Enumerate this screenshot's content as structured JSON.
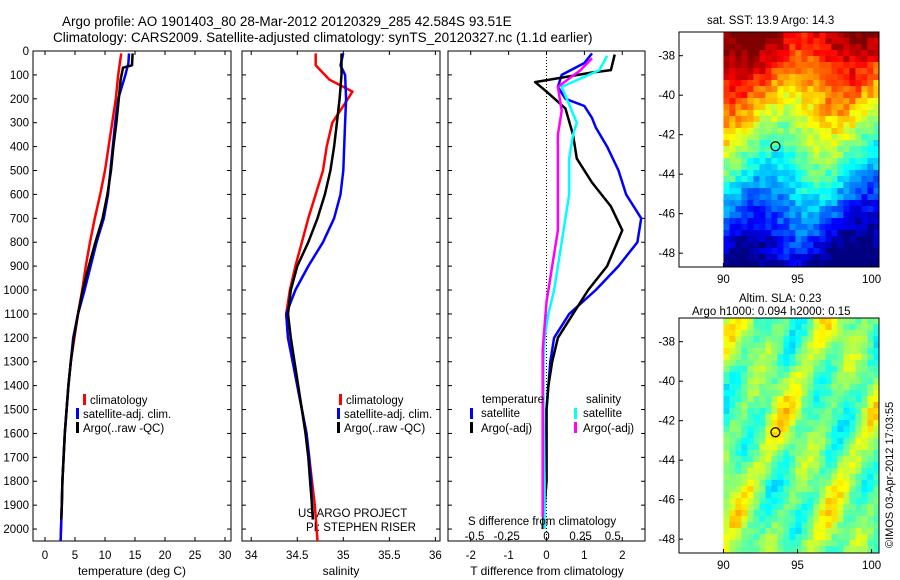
{
  "header": {
    "line1": "Argo profile: AO 1901403_80 28-Mar-2012 20120329_285 42.584S 93.51E",
    "line2": "Climatology: CARS2009. Satellite-adjusted climatology: synTS_20120327.nc (1.1d earlier)"
  },
  "side_stamp": "©IMOS 03-Apr-2012 17:03:55",
  "credits": [
    "US ARGO PROJECT",
    "PI: STEPHEN RISER"
  ],
  "legend_profiles": [
    "climatology",
    "satellite-adj. clim.",
    "Argo(..raw -QC)"
  ],
  "legend_diff": {
    "temp_head": "temperature",
    "sal_head": "salinity",
    "satellite": "satellite",
    "argo": "Argo(-adj)"
  },
  "map_titles": {
    "sst": "sat. SST: 13.9 Argo: 14.3",
    "sla1": "Altim. SLA: 0.23",
    "sla2": "Argo h1000: 0.094 h2000: 0.15"
  },
  "colors": {
    "climatology": "#ff0000",
    "satellite": "#0000ff",
    "argo": "#000000",
    "sal_sat": "#00ffff",
    "sal_argo": "#ff00ff"
  },
  "chart_data": [
    {
      "type": "line",
      "xlabel": "temperature (deg C)",
      "ylabel": "",
      "xlim": [
        -2,
        31
      ],
      "ylim": [
        2050,
        0
      ],
      "xticks": [
        0,
        5,
        10,
        15,
        20,
        25,
        30
      ],
      "yticks": [
        0,
        100,
        200,
        300,
        400,
        500,
        600,
        700,
        800,
        900,
        1000,
        1100,
        1200,
        1300,
        1400,
        1500,
        1600,
        1700,
        1800,
        1900,
        2000
      ],
      "series": [
        {
          "name": "climatology",
          "color": "#ff0000",
          "points": [
            [
              12.7,
              10
            ],
            [
              12.2,
              100
            ],
            [
              11.8,
              200
            ],
            [
              11.2,
              300
            ],
            [
              10.6,
              400
            ],
            [
              10.0,
              500
            ],
            [
              9.2,
              600
            ],
            [
              8.3,
              700
            ],
            [
              7.5,
              800
            ],
            [
              6.8,
              900
            ],
            [
              6.2,
              1000
            ],
            [
              5.5,
              1100
            ],
            [
              4.9,
              1200
            ],
            [
              4.3,
              1300
            ],
            [
              3.9,
              1400
            ],
            [
              3.6,
              1500
            ],
            [
              3.3,
              1600
            ],
            [
              3.1,
              1700
            ],
            [
              2.9,
              1800
            ],
            [
              2.8,
              1900
            ],
            [
              2.6,
              2050
            ]
          ]
        },
        {
          "name": "satellite-adj. clim.",
          "color": "#0000ff",
          "points": [
            [
              14.0,
              10
            ],
            [
              13.9,
              50
            ],
            [
              13.4,
              100
            ],
            [
              12.2,
              200
            ],
            [
              11.7,
              300
            ],
            [
              11.3,
              400
            ],
            [
              10.9,
              500
            ],
            [
              10.5,
              600
            ],
            [
              9.8,
              700
            ],
            [
              8.6,
              800
            ],
            [
              7.6,
              900
            ],
            [
              6.6,
              1000
            ],
            [
              5.5,
              1100
            ],
            [
              4.7,
              1200
            ],
            [
              4.3,
              1300
            ],
            [
              3.9,
              1400
            ],
            [
              3.6,
              1500
            ],
            [
              3.3,
              1600
            ],
            [
              3.1,
              1700
            ],
            [
              2.9,
              1800
            ],
            [
              2.8,
              1900
            ],
            [
              2.6,
              2050
            ]
          ]
        },
        {
          "name": "Argo(..raw -QC)",
          "color": "#000000",
          "points": [
            [
              14.6,
              10
            ],
            [
              14.5,
              60
            ],
            [
              13.0,
              70
            ],
            [
              12.6,
              120
            ],
            [
              12.3,
              200
            ],
            [
              11.9,
              300
            ],
            [
              11.4,
              400
            ],
            [
              11.0,
              500
            ],
            [
              10.4,
              600
            ],
            [
              9.6,
              700
            ],
            [
              8.4,
              800
            ],
            [
              7.3,
              900
            ],
            [
              6.3,
              1000
            ],
            [
              5.5,
              1100
            ],
            [
              4.8,
              1200
            ],
            [
              4.3,
              1300
            ],
            [
              3.9,
              1400
            ],
            [
              3.6,
              1500
            ],
            [
              3.3,
              1600
            ],
            [
              3.1,
              1700
            ],
            [
              2.9,
              1800
            ],
            [
              2.8,
              1900
            ],
            [
              2.7,
              1960
            ]
          ]
        }
      ]
    },
    {
      "type": "line",
      "xlabel": "salinity",
      "ylabel": "",
      "xlim": [
        33.9,
        36.05
      ],
      "ylim": [
        2050,
        0
      ],
      "xticks": [
        34,
        34.5,
        35,
        35.5,
        36
      ],
      "xticklabels": [
        "34",
        "34.5",
        "35",
        "35.5",
        "36"
      ],
      "series": [
        {
          "name": "climatology",
          "color": "#ff0000",
          "points": [
            [
              34.7,
              10
            ],
            [
              34.7,
              60
            ],
            [
              34.85,
              120
            ],
            [
              35.1,
              170
            ],
            [
              35.0,
              230
            ],
            [
              34.88,
              300
            ],
            [
              34.82,
              400
            ],
            [
              34.78,
              500
            ],
            [
              34.7,
              600
            ],
            [
              34.62,
              700
            ],
            [
              34.55,
              800
            ],
            [
              34.48,
              900
            ],
            [
              34.42,
              1000
            ],
            [
              34.38,
              1100
            ],
            [
              34.4,
              1200
            ],
            [
              34.45,
              1300
            ],
            [
              34.5,
              1400
            ],
            [
              34.55,
              1500
            ],
            [
              34.6,
              1600
            ],
            [
              34.63,
              1700
            ],
            [
              34.66,
              1800
            ],
            [
              34.69,
              1900
            ],
            [
              34.72,
              2050
            ]
          ]
        },
        {
          "name": "satellite-adj. clim.",
          "color": "#0000ff",
          "points": [
            [
              35.0,
              10
            ],
            [
              34.97,
              60
            ],
            [
              35.02,
              100
            ],
            [
              35.03,
              200
            ],
            [
              35.02,
              300
            ],
            [
              35.01,
              400
            ],
            [
              35.0,
              500
            ],
            [
              34.97,
              600
            ],
            [
              34.9,
              700
            ],
            [
              34.78,
              800
            ],
            [
              34.62,
              900
            ],
            [
              34.48,
              1000
            ],
            [
              34.38,
              1100
            ],
            [
              34.4,
              1200
            ],
            [
              34.45,
              1300
            ],
            [
              34.5,
              1400
            ],
            [
              34.55,
              1500
            ],
            [
              34.6,
              1600
            ],
            [
              34.63,
              1700
            ],
            [
              34.65,
              1800
            ],
            [
              34.66,
              1900
            ],
            [
              34.67,
              1960
            ]
          ]
        },
        {
          "name": "Argo(..raw -QC)",
          "color": "#000000",
          "points": [
            [
              34.98,
              10
            ],
            [
              34.98,
              100
            ],
            [
              34.96,
              200
            ],
            [
              34.93,
              300
            ],
            [
              34.9,
              400
            ],
            [
              34.86,
              500
            ],
            [
              34.8,
              600
            ],
            [
              34.72,
              700
            ],
            [
              34.62,
              800
            ],
            [
              34.5,
              900
            ],
            [
              34.43,
              1000
            ],
            [
              34.4,
              1100
            ],
            [
              34.43,
              1200
            ],
            [
              34.47,
              1300
            ],
            [
              34.51,
              1400
            ],
            [
              34.55,
              1500
            ],
            [
              34.59,
              1600
            ],
            [
              34.62,
              1700
            ],
            [
              34.64,
              1800
            ],
            [
              34.66,
              1900
            ],
            [
              34.67,
              1960
            ]
          ]
        }
      ]
    },
    {
      "type": "line",
      "xlabel": "T difference from climatology",
      "ylabel": "",
      "inner_label": "S difference from climatology",
      "xlim": [
        -2.6,
        2.6
      ],
      "ylim": [
        2050,
        0
      ],
      "xticks": [
        -2,
        -1,
        0,
        1,
        2
      ],
      "sticks_positions": [
        -1.9,
        -1.05,
        0.0,
        0.9,
        1.75
      ],
      "sticks_labels": [
        "-0.5",
        "-0.25",
        "0",
        "0.25",
        "0.5"
      ],
      "series": [
        {
          "name": "temperature satellite",
          "color": "#0000ff",
          "points": [
            [
              1.2,
              10
            ],
            [
              1.0,
              50
            ],
            [
              0.4,
              100
            ],
            [
              0.3,
              150
            ],
            [
              0.5,
              200
            ],
            [
              1.0,
              230
            ],
            [
              1.2,
              280
            ],
            [
              1.3,
              320
            ],
            [
              1.6,
              400
            ],
            [
              1.9,
              500
            ],
            [
              2.1,
              600
            ],
            [
              2.5,
              700
            ],
            [
              2.4,
              800
            ],
            [
              1.9,
              900
            ],
            [
              1.3,
              1000
            ],
            [
              0.6,
              1100
            ],
            [
              0.2,
              1200
            ],
            [
              0.1,
              1300
            ],
            [
              0.05,
              1400
            ],
            [
              0.0,
              1500
            ],
            [
              0.0,
              1600
            ],
            [
              0.0,
              1700
            ],
            [
              0.0,
              1800
            ],
            [
              -0.05,
              1900
            ],
            [
              -0.1,
              2000
            ]
          ]
        },
        {
          "name": "temperature Argo(-adj)",
          "color": "#000000",
          "points": [
            [
              1.8,
              15
            ],
            [
              1.7,
              80
            ],
            [
              1.2,
              90
            ],
            [
              -0.3,
              130
            ],
            [
              0.0,
              170
            ],
            [
              0.5,
              240
            ],
            [
              0.7,
              350
            ],
            [
              0.8,
              450
            ],
            [
              1.2,
              550
            ],
            [
              1.7,
              650
            ],
            [
              2.0,
              750
            ],
            [
              1.6,
              900
            ],
            [
              1.1,
              1000
            ],
            [
              0.7,
              1100
            ],
            [
              0.3,
              1200
            ],
            [
              0.15,
              1300
            ],
            [
              0.05,
              1400
            ],
            [
              0.0,
              1500
            ],
            [
              0.0,
              1600
            ],
            [
              0.0,
              1700
            ],
            [
              0.0,
              1800
            ],
            [
              -0.05,
              1900
            ],
            [
              -0.1,
              2000
            ]
          ]
        },
        {
          "name": "salinity satellite",
          "color": "#00ffff",
          "points": [
            [
              1.6,
              20
            ],
            [
              1.4,
              80
            ],
            [
              0.4,
              150
            ],
            [
              0.8,
              300
            ],
            [
              0.7,
              350
            ],
            [
              0.6,
              450
            ],
            [
              0.6,
              600
            ],
            [
              0.5,
              700
            ],
            [
              0.4,
              800
            ],
            [
              0.3,
              900
            ],
            [
              0.2,
              1000
            ],
            [
              0.05,
              1100
            ],
            [
              -0.05,
              1200
            ],
            [
              -0.08,
              1300
            ],
            [
              -0.08,
              1400
            ],
            [
              -0.08,
              1500
            ],
            [
              -0.07,
              1600
            ],
            [
              -0.06,
              1700
            ],
            [
              -0.05,
              1800
            ],
            [
              -0.05,
              1900
            ],
            [
              -0.05,
              2000
            ]
          ]
        },
        {
          "name": "salinity Argo(-adj)",
          "color": "#ff00ff",
          "points": [
            [
              1.2,
              30
            ],
            [
              0.9,
              80
            ],
            [
              0.3,
              150
            ],
            [
              0.4,
              250
            ],
            [
              0.3,
              350
            ],
            [
              0.3,
              450
            ],
            [
              0.3,
              550
            ],
            [
              0.3,
              650
            ],
            [
              0.3,
              750
            ],
            [
              0.2,
              850
            ],
            [
              0.1,
              950
            ],
            [
              0.0,
              1050
            ],
            [
              -0.05,
              1150
            ],
            [
              -0.1,
              1250
            ],
            [
              -0.1,
              1350
            ],
            [
              -0.1,
              1450
            ],
            [
              -0.1,
              1550
            ],
            [
              -0.1,
              1650
            ],
            [
              -0.1,
              1750
            ],
            [
              -0.1,
              1850
            ],
            [
              -0.1,
              1950
            ]
          ]
        }
      ]
    },
    {
      "type": "heatmap",
      "title": "sat. SST: 13.9 Argo: 14.3",
      "xlim": [
        87,
        100.5
      ],
      "ylim": [
        -48.7,
        -36.8
      ],
      "xticks": [
        90,
        95,
        100
      ],
      "yticks": [
        -38,
        -40,
        -42,
        -44,
        -46,
        -48
      ],
      "data_extent": {
        "lon": [
          90,
          100.5
        ],
        "lat": [
          -48.7,
          -36.8
        ]
      },
      "argo_position": [
        93.51,
        -42.584
      ]
    },
    {
      "type": "heatmap",
      "title": "Altim. SLA: 0.23",
      "xlim": [
        87,
        100.5
      ],
      "ylim": [
        -48.7,
        -36.8
      ],
      "xticks": [
        90,
        95,
        100
      ],
      "yticks": [
        -38,
        -40,
        -42,
        -44,
        -46,
        -48
      ],
      "data_extent": {
        "lon": [
          90,
          100.5
        ],
        "lat": [
          -48.7,
          -36.8
        ]
      },
      "argo_position": [
        93.51,
        -42.584
      ]
    }
  ]
}
